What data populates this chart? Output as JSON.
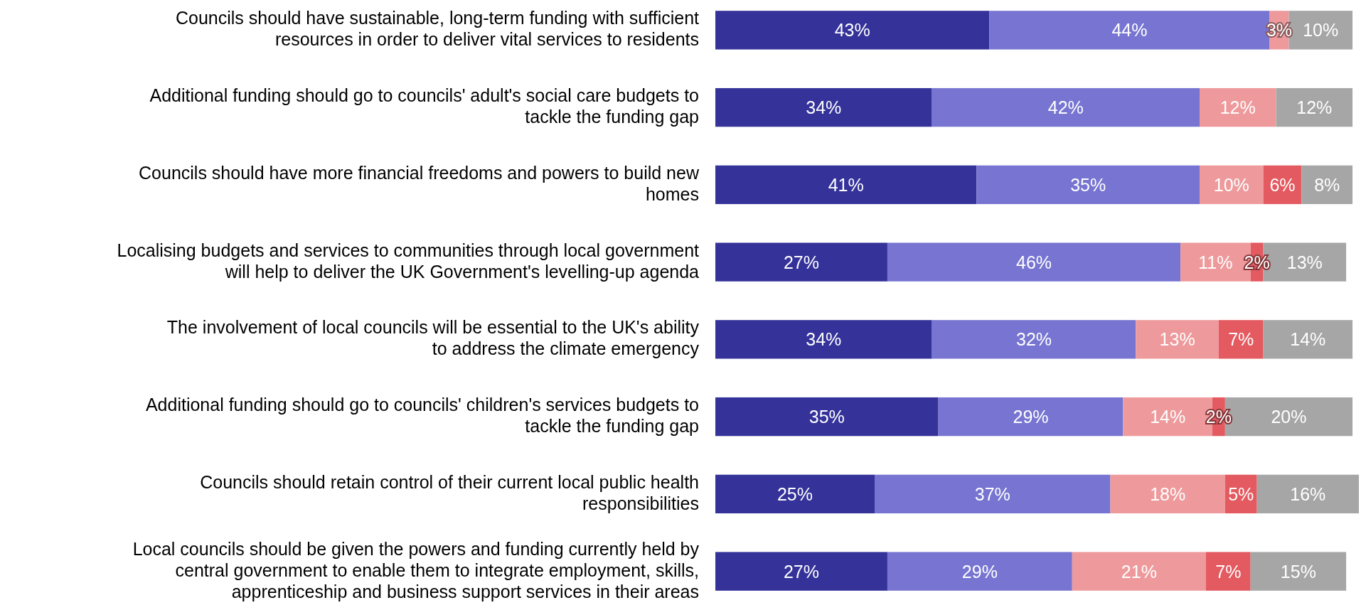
{
  "chart_data": {
    "type": "bar",
    "orientation": "horizontal",
    "stacked": true,
    "xlim": [
      0,
      101
    ],
    "categories": [
      "Councils should have sustainable, long-term funding with sufficient resources in order to deliver vital services to residents",
      "Additional funding should go to councils' adult's social care budgets to tackle the funding gap",
      "Councils should have more financial freedoms and powers to build new homes",
      "Localising budgets and services to communities through local government will help to deliver the UK Government's levelling-up agenda",
      "The involvement of local councils will be essential to the UK's ability to address the climate emergency",
      "Additional funding should go to councils' children's services budgets to tackle the funding gap",
      "Councils should retain control of their current local public health responsibilities",
      "Local councils should be given the powers and funding currently held by central government to enable them to integrate employment, skills, apprenticeship and business support services in their areas"
    ],
    "series": [
      {
        "color": "#35339a",
        "values": [
          43,
          34,
          41,
          27,
          34,
          35,
          25,
          27
        ],
        "value_labels": [
          "43%",
          "34%",
          "41%",
          "27%",
          "34%",
          "35%",
          "25%",
          "27%"
        ]
      },
      {
        "color": "#7775d1",
        "values": [
          44,
          42,
          35,
          46,
          32,
          29,
          37,
          29
        ],
        "value_labels": [
          "44%",
          "42%",
          "35%",
          "46%",
          "32%",
          "29%",
          "37%",
          "29%"
        ]
      },
      {
        "color": "#ee9a9c",
        "values": [
          3,
          12,
          10,
          11,
          13,
          14,
          18,
          21
        ],
        "value_labels": [
          "3%",
          "12%",
          "10%",
          "11%",
          "13%",
          "14%",
          "18%",
          "21%"
        ]
      },
      {
        "color": "#e35a60",
        "values": [
          0,
          0,
          6,
          2,
          7,
          2,
          5,
          7
        ],
        "value_labels": [
          null,
          null,
          "6%",
          "2%",
          "7%",
          "2%",
          "5%",
          "7%"
        ]
      },
      {
        "color": "#a6a6a6",
        "values": [
          10,
          12,
          8,
          13,
          14,
          20,
          16,
          15
        ],
        "value_labels": [
          "10%",
          "12%",
          "8%",
          "13%",
          "14%",
          "20%",
          "16%",
          "15%"
        ]
      }
    ]
  }
}
